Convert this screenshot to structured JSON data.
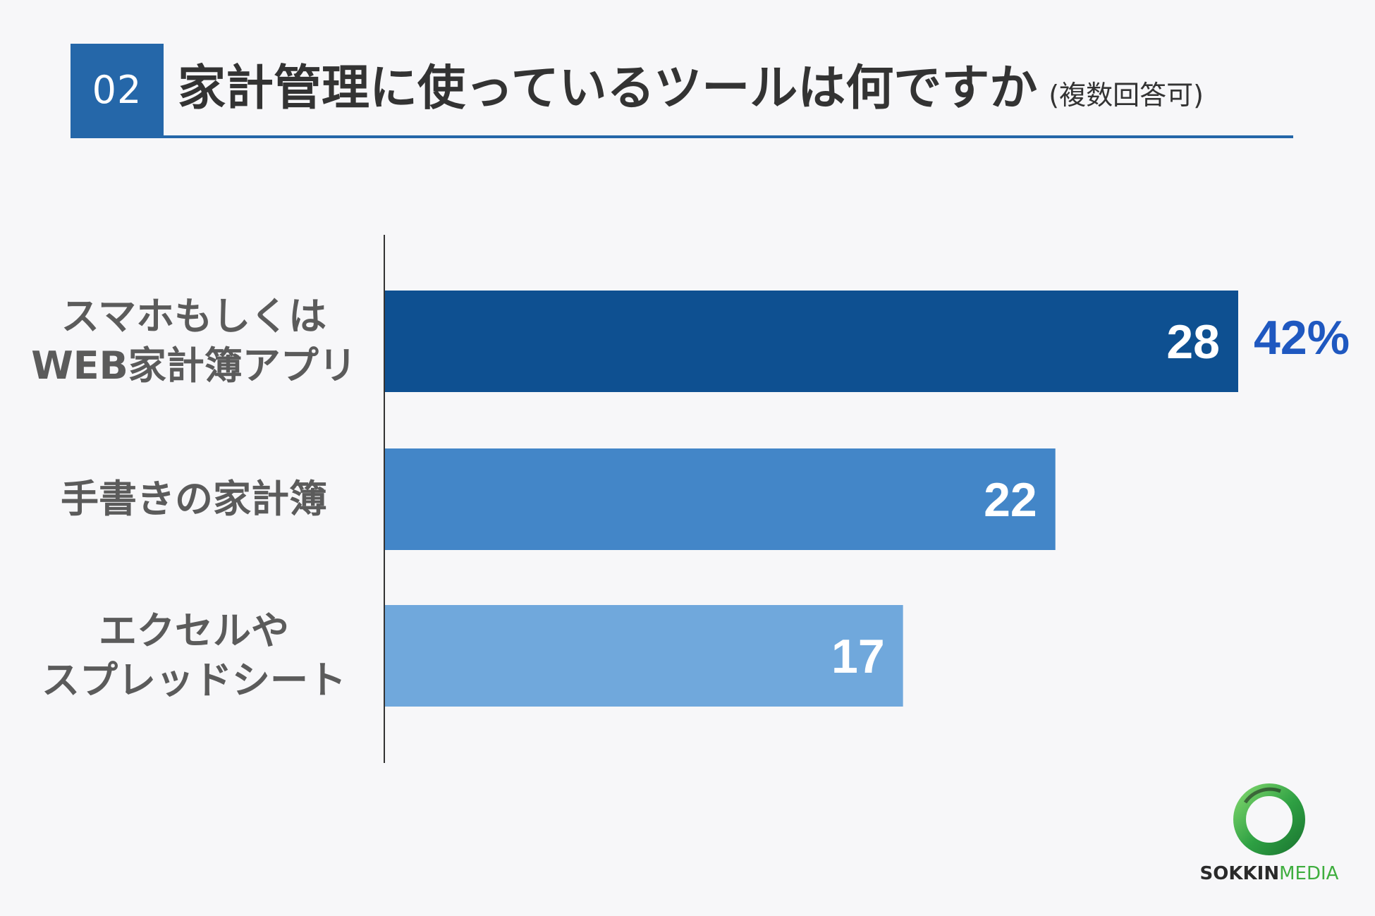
{
  "header": {
    "number": "02",
    "title": "家計管理に使っているツールは何ですか",
    "subtitle": "(複数回答可)"
  },
  "colors": {
    "header_blue": "#2567a9",
    "bar_dark": "#0e5091",
    "bar_mid": "#4386c8",
    "bar_light": "#70a8dc",
    "percent_blue": "#1f58c0",
    "logo_green": "#3fae3f"
  },
  "chart_data": {
    "type": "bar",
    "orientation": "horizontal",
    "categories": [
      [
        "スマホもしくは",
        "WEB家計簿アプリ"
      ],
      [
        "手書きの家計簿"
      ],
      [
        "エクセルや",
        "スプレッドシート"
      ]
    ],
    "values": [
      28,
      22,
      17
    ],
    "value_labels": [
      "28",
      "22",
      "17"
    ],
    "annotations": [
      {
        "category_index": 0,
        "text": "42%"
      }
    ],
    "xlim": [
      0,
      28
    ],
    "grid": false,
    "legend": "none"
  },
  "logo": {
    "icon": "green-ring-logo",
    "word_dark": "SOKKIN",
    "word_light": "MEDIA"
  }
}
